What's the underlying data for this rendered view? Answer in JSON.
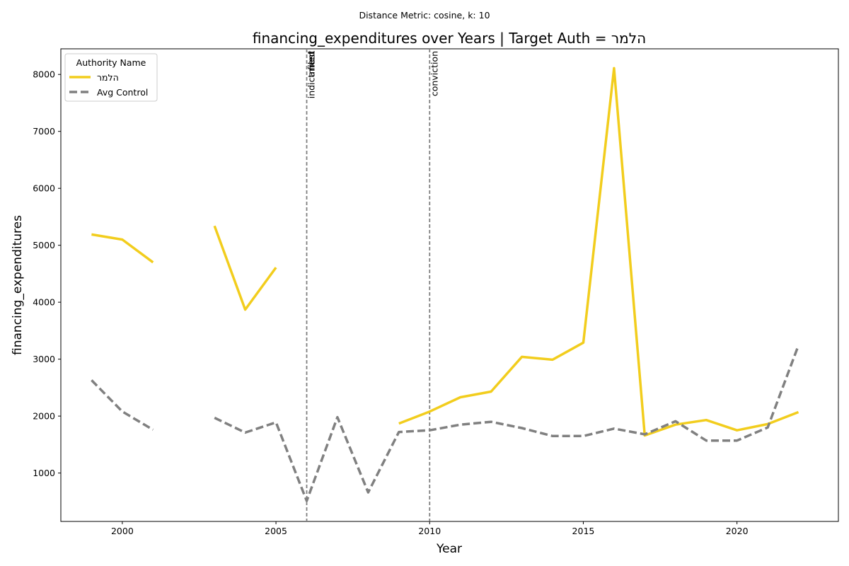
{
  "suptitle": "Distance Metric: cosine, k: 10",
  "chart_data": {
    "type": "line",
    "title": "financing_expenditures over Years | Target Auth = הלמר",
    "xlabel": "Year",
    "ylabel": "financing_expenditures",
    "xlim": [
      1998,
      2023.3
    ],
    "ylim": [
      150,
      8450
    ],
    "x_ticks": [
      2000,
      2005,
      2010,
      2015,
      2020
    ],
    "y_ticks": [
      1000,
      2000,
      3000,
      4000,
      5000,
      6000,
      7000,
      8000
    ],
    "grid": false,
    "legend": {
      "title": "Authority Name",
      "placement": "top-left"
    },
    "events": [
      {
        "x": 2006,
        "labels": [
          "indictment",
          "arrest",
          "filed"
        ]
      },
      {
        "x": 2010,
        "labels": [
          "conviction"
        ]
      }
    ],
    "series": [
      {
        "name": "הלמר",
        "color": "#f2cd1d",
        "style": "solid",
        "x": [
          1999,
          2000,
          2001,
          2002,
          2003,
          2004,
          2005,
          2006,
          2007,
          2008,
          2009,
          2010,
          2011,
          2012,
          2013,
          2014,
          2015,
          2016,
          2017,
          2018,
          2019,
          2020,
          2021,
          2022
        ],
        "y": [
          5190,
          5100,
          4700,
          null,
          5340,
          3870,
          4610,
          null,
          null,
          null,
          1870,
          2080,
          2330,
          2430,
          3040,
          2990,
          3290,
          8110,
          1660,
          1850,
          1930,
          1750,
          1860,
          2070
        ]
      },
      {
        "name": "Avg Control",
        "color": "#808080",
        "style": "dashed",
        "x": [
          1999,
          2000,
          2001,
          2002,
          2003,
          2004,
          2005,
          2006,
          2007,
          2008,
          2009,
          2010,
          2011,
          2012,
          2013,
          2014,
          2015,
          2016,
          2017,
          2018,
          2019,
          2020,
          2021,
          2022
        ],
        "y": [
          2630,
          2080,
          1760,
          null,
          1970,
          1710,
          1890,
          510,
          1980,
          660,
          1720,
          1750,
          1850,
          1900,
          1790,
          1650,
          1650,
          1780,
          1680,
          1910,
          1570,
          1570,
          1800,
          3240
        ]
      }
    ]
  }
}
